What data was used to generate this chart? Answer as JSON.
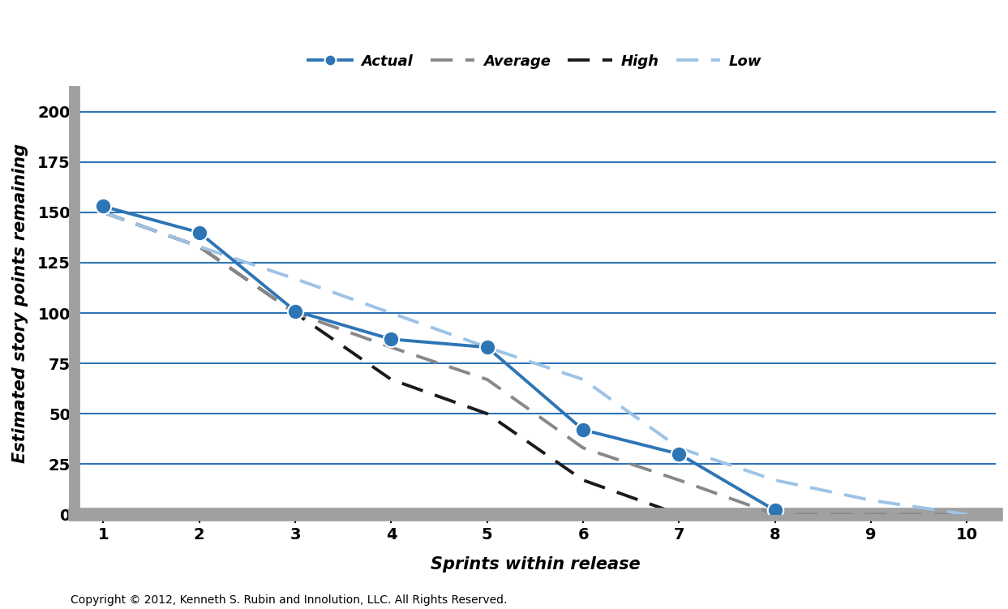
{
  "actual_x": [
    1,
    2,
    3,
    4,
    5,
    6,
    7,
    8
  ],
  "actual_y": [
    153,
    140,
    101,
    87,
    83,
    42,
    30,
    2
  ],
  "average_x": [
    1,
    2,
    3,
    4,
    5,
    6,
    7,
    8,
    9,
    10
  ],
  "average_y": [
    150,
    133,
    100,
    83,
    67,
    33,
    17,
    0,
    0,
    0
  ],
  "high_x": [
    1,
    2,
    3,
    4,
    5,
    6,
    7,
    8,
    9,
    10
  ],
  "high_y": [
    150,
    133,
    100,
    67,
    50,
    17,
    0,
    0,
    0,
    0
  ],
  "low_x": [
    1,
    2,
    3,
    4,
    5,
    6,
    7,
    8,
    9,
    10
  ],
  "low_y": [
    150,
    133,
    117,
    100,
    83,
    67,
    33,
    17,
    7,
    0
  ],
  "actual_color": "#2E75B6",
  "average_color": "#888888",
  "high_color": "#1a1a1a",
  "low_color": "#9DC3E6",
  "xlabel": "Sprints within release",
  "ylabel": "Estimated story points remaining",
  "xlim": [
    0.7,
    10.3
  ],
  "ylim": [
    0,
    210
  ],
  "xticks": [
    1,
    2,
    3,
    4,
    5,
    6,
    7,
    8,
    9,
    10
  ],
  "yticks": [
    0,
    25,
    50,
    75,
    100,
    125,
    150,
    175,
    200
  ],
  "grid_color": "#2E75B6",
  "background_color": "#FFFFFF",
  "plot_bg_color": "#FFFFFF",
  "left_spine_color": "#A0A0A0",
  "bottom_bar_color": "#A0A0A0",
  "copyright": "Copyright © 2012, Kenneth S. Rubin and Innolution, LLC. All Rights Reserved.",
  "label_fontsize": 15,
  "legend_fontsize": 13,
  "tick_fontsize": 14,
  "copyright_fontsize": 10
}
